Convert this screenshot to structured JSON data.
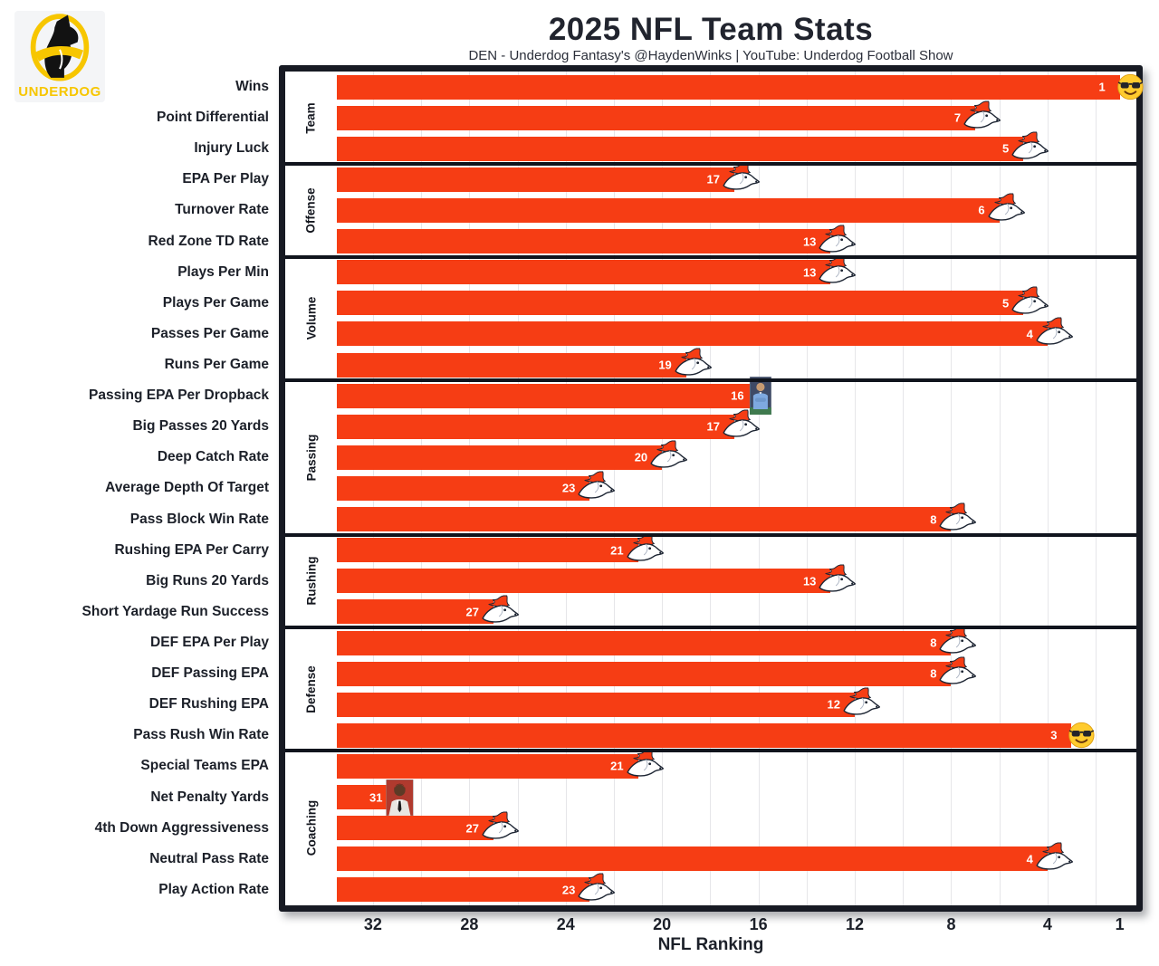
{
  "header": {
    "title": "2025 NFL Team Stats",
    "subtitle": "DEN - Underdog Fantasy's @HaydenWinks | YouTube: Underdog Football Show"
  },
  "logo": {
    "brand": "UNDERDOG"
  },
  "axis": {
    "label": "NFL Ranking",
    "ticks": [
      32,
      28,
      24,
      20,
      16,
      12,
      8,
      4,
      1
    ]
  },
  "colors": {
    "bar": "#F63D14",
    "text_dark": "#1c2029",
    "frame": "#171a23",
    "grid": "#e6e6e9",
    "brand_yellow": "#F7C600",
    "rank_number": "#ffffff"
  },
  "chart_data": {
    "type": "bar",
    "orientation": "horizontal",
    "title": "2025 NFL Team Stats",
    "xlabel": "NFL Ranking",
    "value_meaning": "NFL ranking out of 32 teams (1 = best); bars grow from rank 33 baseline toward rank 1",
    "x_axis": {
      "reversed": true,
      "left_rank": 33.5,
      "right_rank": 0.5,
      "gridline_step": 2
    },
    "legend": "none",
    "groups": [
      {
        "name": "Team",
        "rows": [
          {
            "label": "Wins",
            "rank": 1,
            "marker": "sunglasses"
          },
          {
            "label": "Point Differential",
            "rank": 7,
            "marker": "broncos"
          },
          {
            "label": "Injury Luck",
            "rank": 5,
            "marker": "broncos"
          }
        ]
      },
      {
        "name": "Offense",
        "rows": [
          {
            "label": "EPA Per Play",
            "rank": 17,
            "marker": "broncos"
          },
          {
            "label": "Turnover Rate",
            "rank": 6,
            "marker": "broncos"
          },
          {
            "label": "Red Zone TD Rate",
            "rank": 13,
            "marker": "broncos"
          }
        ]
      },
      {
        "name": "Volume",
        "rows": [
          {
            "label": "Plays Per Min",
            "rank": 13,
            "marker": "broncos"
          },
          {
            "label": "Plays Per Game",
            "rank": 5,
            "marker": "broncos"
          },
          {
            "label": "Passes Per Game",
            "rank": 4,
            "marker": "broncos"
          },
          {
            "label": "Runs Per Game",
            "rank": 19,
            "marker": "broncos"
          }
        ]
      },
      {
        "name": "Passing",
        "rows": [
          {
            "label": "Passing EPA Per Dropback",
            "rank": 16,
            "marker": "photo-coach"
          },
          {
            "label": "Big Passes 20 Yards",
            "rank": 17,
            "marker": "broncos"
          },
          {
            "label": "Deep Catch Rate",
            "rank": 20,
            "marker": "broncos"
          },
          {
            "label": "Average Depth Of Target",
            "rank": 23,
            "marker": "broncos"
          },
          {
            "label": "Pass Block Win Rate",
            "rank": 8,
            "marker": "broncos"
          }
        ]
      },
      {
        "name": "Rushing",
        "rows": [
          {
            "label": "Rushing EPA Per Carry",
            "rank": 21,
            "marker": "broncos"
          },
          {
            "label": "Big Runs 20 Yards",
            "rank": 13,
            "marker": "broncos"
          },
          {
            "label": "Short Yardage Run Success",
            "rank": 27,
            "marker": "broncos"
          }
        ]
      },
      {
        "name": "Defense",
        "rows": [
          {
            "label": "DEF EPA Per Play",
            "rank": 8,
            "marker": "broncos"
          },
          {
            "label": "DEF Passing EPA",
            "rank": 8,
            "marker": "broncos"
          },
          {
            "label": "DEF Rushing EPA",
            "rank": 12,
            "marker": "broncos"
          },
          {
            "label": "Pass Rush Win Rate",
            "rank": 3,
            "marker": "sunglasses"
          }
        ]
      },
      {
        "name": "Coaching",
        "rows": [
          {
            "label": "Special Teams EPA",
            "rank": 21,
            "marker": "broncos"
          },
          {
            "label": "Net Penalty Yards",
            "rank": 31,
            "marker": "photo-jordan"
          },
          {
            "label": "4th Down Aggressiveness",
            "rank": 27,
            "marker": "broncos"
          },
          {
            "label": "Neutral Pass Rate",
            "rank": 4,
            "marker": "broncos"
          },
          {
            "label": "Play Action Rate",
            "rank": 23,
            "marker": "broncos"
          }
        ]
      }
    ]
  }
}
